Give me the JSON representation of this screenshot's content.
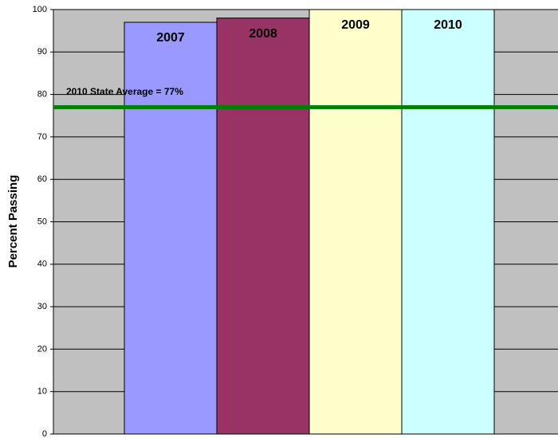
{
  "chart_data": {
    "type": "bar",
    "y_label": "Percent Passing",
    "categories": [
      "2007",
      "2008",
      "2009",
      "2010"
    ],
    "values": [
      97,
      98,
      100,
      100
    ],
    "colors": [
      "#9999ff",
      "#993366",
      "#ffffcc",
      "#ccffff"
    ],
    "ylim": [
      0,
      100
    ],
    "yticks": [
      0,
      10,
      20,
      30,
      40,
      50,
      60,
      70,
      80,
      90,
      100
    ],
    "grid": true,
    "reference_line": {
      "value": 77,
      "label": "2010 State Average = 77%",
      "color": "#008000"
    }
  }
}
